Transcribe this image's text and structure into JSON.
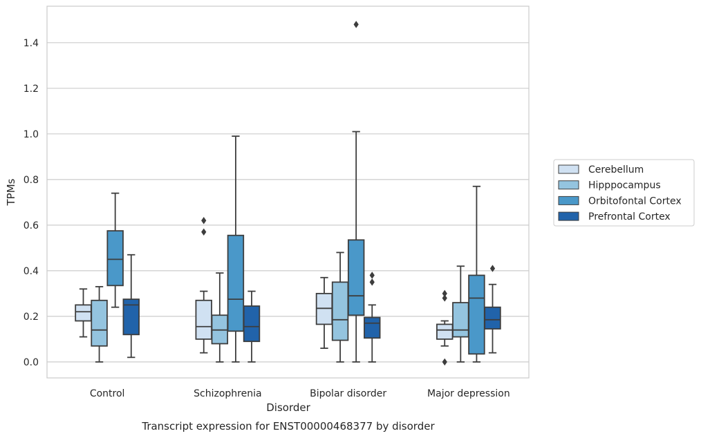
{
  "chart_data": {
    "type": "boxplot",
    "caption": "Transcript expression for ENST00000468377 by disorder",
    "xlabel": "Disorder",
    "ylabel": "TPMs",
    "ylim": [
      -0.07,
      1.56
    ],
    "yticks": [
      0.0,
      0.2,
      0.4,
      0.6,
      0.8,
      1.0,
      1.2,
      1.4
    ],
    "ytick_labels": [
      "0.0",
      "0.2",
      "0.4",
      "0.6",
      "0.8",
      "1.0",
      "1.2",
      "1.4"
    ],
    "grid": "horizontal",
    "legend_position": "right",
    "categories": [
      "Control",
      "Schizophrenia",
      "Bipolar disorder",
      "Major depression"
    ],
    "series": [
      {
        "name": "Cerebellum",
        "color": "#d0e1f2",
        "boxes": [
          {
            "whislo": 0.11,
            "q1": 0.18,
            "med": 0.22,
            "q3": 0.25,
            "whishi": 0.32,
            "fliers": []
          },
          {
            "whislo": 0.04,
            "q1": 0.1,
            "med": 0.155,
            "q3": 0.27,
            "whishi": 0.31,
            "fliers": [
              0.57,
              0.62
            ]
          },
          {
            "whislo": 0.06,
            "q1": 0.165,
            "med": 0.235,
            "q3": 0.3,
            "whishi": 0.37,
            "fliers": []
          },
          {
            "whislo": 0.07,
            "q1": 0.1,
            "med": 0.14,
            "q3": 0.165,
            "whishi": 0.18,
            "fliers": [
              0.0,
              0.28,
              0.3
            ]
          }
        ]
      },
      {
        "name": "Hipppocampus",
        "color": "#94c4df",
        "boxes": [
          {
            "whislo": 0.0,
            "q1": 0.07,
            "med": 0.14,
            "q3": 0.27,
            "whishi": 0.33,
            "fliers": []
          },
          {
            "whislo": 0.0,
            "q1": 0.08,
            "med": 0.14,
            "q3": 0.205,
            "whishi": 0.39,
            "fliers": []
          },
          {
            "whislo": 0.0,
            "q1": 0.095,
            "med": 0.185,
            "q3": 0.35,
            "whishi": 0.48,
            "fliers": []
          },
          {
            "whislo": 0.0,
            "q1": 0.11,
            "med": 0.14,
            "q3": 0.26,
            "whishi": 0.42,
            "fliers": []
          }
        ]
      },
      {
        "name": "Orbitofontal Cortex",
        "color": "#4a98c9",
        "boxes": [
          {
            "whislo": 0.24,
            "q1": 0.335,
            "med": 0.45,
            "q3": 0.575,
            "whishi": 0.74,
            "fliers": []
          },
          {
            "whislo": 0.0,
            "q1": 0.135,
            "med": 0.275,
            "q3": 0.555,
            "whishi": 0.99,
            "fliers": []
          },
          {
            "whislo": 0.0,
            "q1": 0.205,
            "med": 0.29,
            "q3": 0.535,
            "whishi": 1.01,
            "fliers": [
              1.48
            ]
          },
          {
            "whislo": 0.0,
            "q1": 0.035,
            "med": 0.28,
            "q3": 0.38,
            "whishi": 0.77,
            "fliers": []
          }
        ]
      },
      {
        "name": "Prefrontal Cortex",
        "color": "#2163aa",
        "boxes": [
          {
            "whislo": 0.02,
            "q1": 0.12,
            "med": 0.25,
            "q3": 0.275,
            "whishi": 0.47,
            "fliers": []
          },
          {
            "whislo": 0.0,
            "q1": 0.09,
            "med": 0.155,
            "q3": 0.245,
            "whishi": 0.31,
            "fliers": []
          },
          {
            "whislo": 0.0,
            "q1": 0.105,
            "med": 0.17,
            "q3": 0.195,
            "whishi": 0.25,
            "fliers": [
              0.35,
              0.38
            ]
          },
          {
            "whislo": 0.04,
            "q1": 0.145,
            "med": 0.185,
            "q3": 0.24,
            "whishi": 0.34,
            "fliers": [
              0.41
            ]
          }
        ]
      }
    ]
  }
}
